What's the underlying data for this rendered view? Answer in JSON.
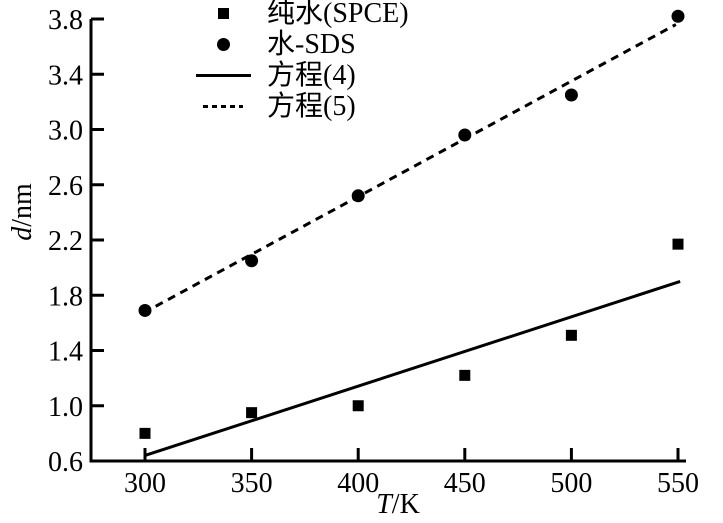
{
  "chart_data": {
    "type": "scatter",
    "title": "",
    "xlabel": "T/K",
    "ylabel": "d/nm",
    "xlim": [
      275,
      554
    ],
    "ylim": [
      0.6,
      3.8
    ],
    "x_ticks": [
      300,
      350,
      400,
      450,
      500,
      550
    ],
    "y_ticks": [
      0.6,
      1.0,
      1.4,
      1.8,
      2.2,
      2.6,
      3.0,
      3.4,
      3.8
    ],
    "grid": false,
    "legend_position": "top-left-inside",
    "series": [
      {
        "name": "纯水(SPCE)",
        "type": "scatter",
        "marker": "square",
        "x": [
          300,
          350,
          400,
          450,
          500,
          550
        ],
        "y": [
          0.8,
          0.95,
          1.0,
          1.22,
          1.51,
          2.17
        ]
      },
      {
        "name": "水-SDS",
        "type": "scatter",
        "marker": "circle",
        "x": [
          300,
          350,
          400,
          450,
          500,
          550
        ],
        "y": [
          1.69,
          2.05,
          2.52,
          2.96,
          3.25,
          3.82
        ]
      },
      {
        "name": "方程(4)",
        "type": "line",
        "style": "solid",
        "x": [
          300,
          551
        ],
        "y": [
          0.64,
          1.9
        ]
      },
      {
        "name": "方程(5)",
        "type": "line",
        "style": "dashed",
        "x": [
          305,
          549
        ],
        "y": [
          1.72,
          3.76
        ]
      }
    ]
  },
  "colors": {
    "ink": "#000000",
    "background": "#ffffff"
  }
}
